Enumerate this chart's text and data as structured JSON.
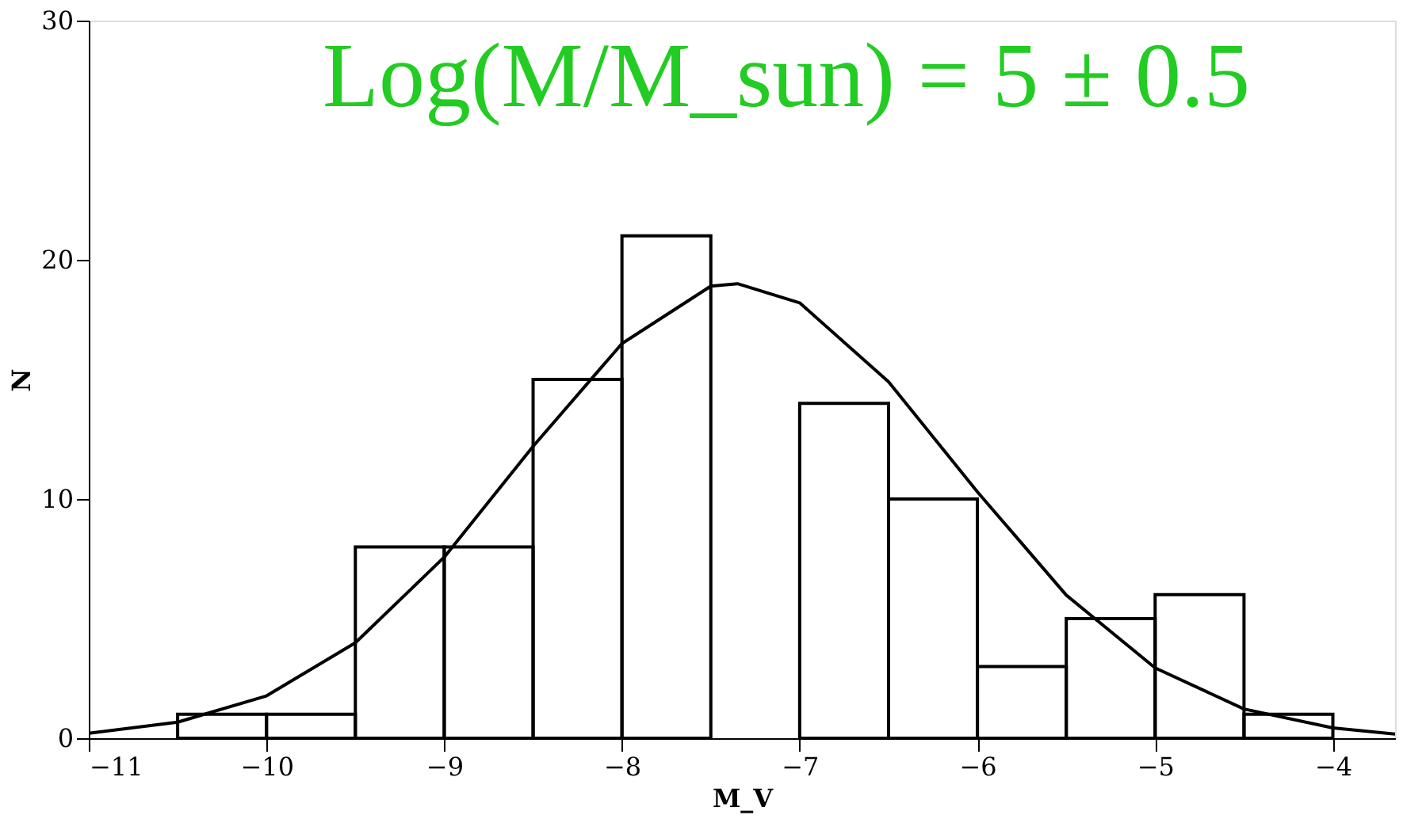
{
  "chart_data": {
    "type": "histogram",
    "xlabel": "M_V",
    "ylabel": "N",
    "bins": [
      -10.5,
      -10,
      -9.5,
      -9,
      -8.5,
      -8,
      -7.5,
      -7,
      -6.5,
      -6,
      -5.5,
      -5,
      -4.5,
      -4
    ],
    "values": [
      1,
      1,
      8,
      8,
      15,
      21,
      null,
      14,
      10,
      3,
      5,
      6,
      1
    ],
    "color": "#000000",
    "series": [
      {
        "type": "line",
        "color": "#000000",
        "x": [
          -11,
          -10.5,
          -10,
          -9.5,
          -9,
          -8.5,
          -8,
          -7.5,
          -7.35,
          -7,
          -6.5,
          -6,
          -5.5,
          -5,
          -4.5,
          -4,
          -3.65
        ],
        "values": [
          0.21,
          0.67,
          1.77,
          3.99,
          7.57,
          12.2,
          16.5,
          18.9,
          19,
          18.2,
          14.9,
          10.3,
          5.98,
          2.94,
          1.22,
          0.43,
          0.17
        ]
      }
    ],
    "xlim": [
      -11,
      -3.65
    ],
    "xticks": [
      -11,
      -10,
      -9,
      -8,
      -7,
      -6,
      -5,
      -4
    ],
    "ylim": [
      0,
      30
    ],
    "yticks": [
      0,
      10,
      20,
      30
    ],
    "grid": false,
    "annotations": [
      "Log(M/M_sun) = 5 ± 0.5"
    ]
  }
}
